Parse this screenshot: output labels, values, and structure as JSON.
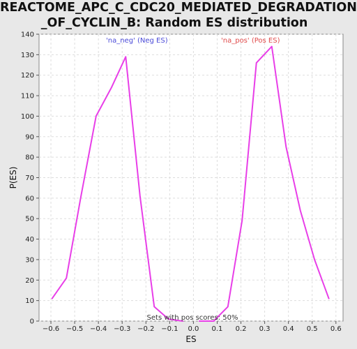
{
  "chart_data": {
    "type": "line",
    "title_lines": [
      "REACTOME_APC_C_CDC20_MEDIATED_DEGRADATION",
      "_OF_CYCLIN_B: Random ES distribution"
    ],
    "xlabel": "ES",
    "ylabel": "P(ES)",
    "xlim": [
      -0.65,
      0.63
    ],
    "ylim": [
      0,
      140
    ],
    "x_ticks": [
      -0.6,
      -0.5,
      -0.4,
      -0.3,
      -0.2,
      -0.1,
      0.0,
      0.1,
      0.2,
      0.3,
      0.4,
      0.5,
      0.6
    ],
    "x_tick_labels": [
      "−0.6",
      "−0.5",
      "−0.4",
      "−0.3",
      "−0.2",
      "−0.1",
      "0.0",
      "0.1",
      "0.2",
      "0.3",
      "0.4",
      "0.5",
      "0.6"
    ],
    "y_ticks": [
      0,
      10,
      20,
      30,
      40,
      50,
      60,
      70,
      80,
      90,
      100,
      110,
      120,
      130,
      140
    ],
    "y_tick_labels": [
      "0",
      "10",
      "20",
      "30",
      "40",
      "50",
      "60",
      "70",
      "80",
      "90",
      "100",
      "110",
      "120",
      "130",
      "140"
    ],
    "grid": true,
    "series": [
      {
        "name": "'na_neg' (Neg ES)",
        "color": "#e83ee8",
        "x": [
          -0.595,
          -0.535,
          -0.475,
          -0.41,
          -0.345,
          -0.285,
          -0.225,
          -0.165,
          -0.105,
          -0.045
        ],
        "y": [
          11,
          21,
          60,
          100,
          114,
          129,
          61,
          7,
          1,
          0
        ]
      },
      {
        "name": "'na_pos' (Pos ES)",
        "color": "#e83ee8",
        "x": [
          0.025,
          0.085,
          0.145,
          0.205,
          0.265,
          0.33,
          0.39,
          0.45,
          0.51,
          0.57
        ],
        "y": [
          0,
          0,
          7,
          49,
          126,
          134,
          85,
          54,
          30,
          11
        ]
      }
    ],
    "legend": [
      {
        "label": "'na_neg' (Neg ES)",
        "color": "#4a4ad8"
      },
      {
        "label": "'na_pos' (Pos ES)",
        "color": "#e04a4a"
      }
    ],
    "annotation": "Sets with pos scores: 50%"
  }
}
